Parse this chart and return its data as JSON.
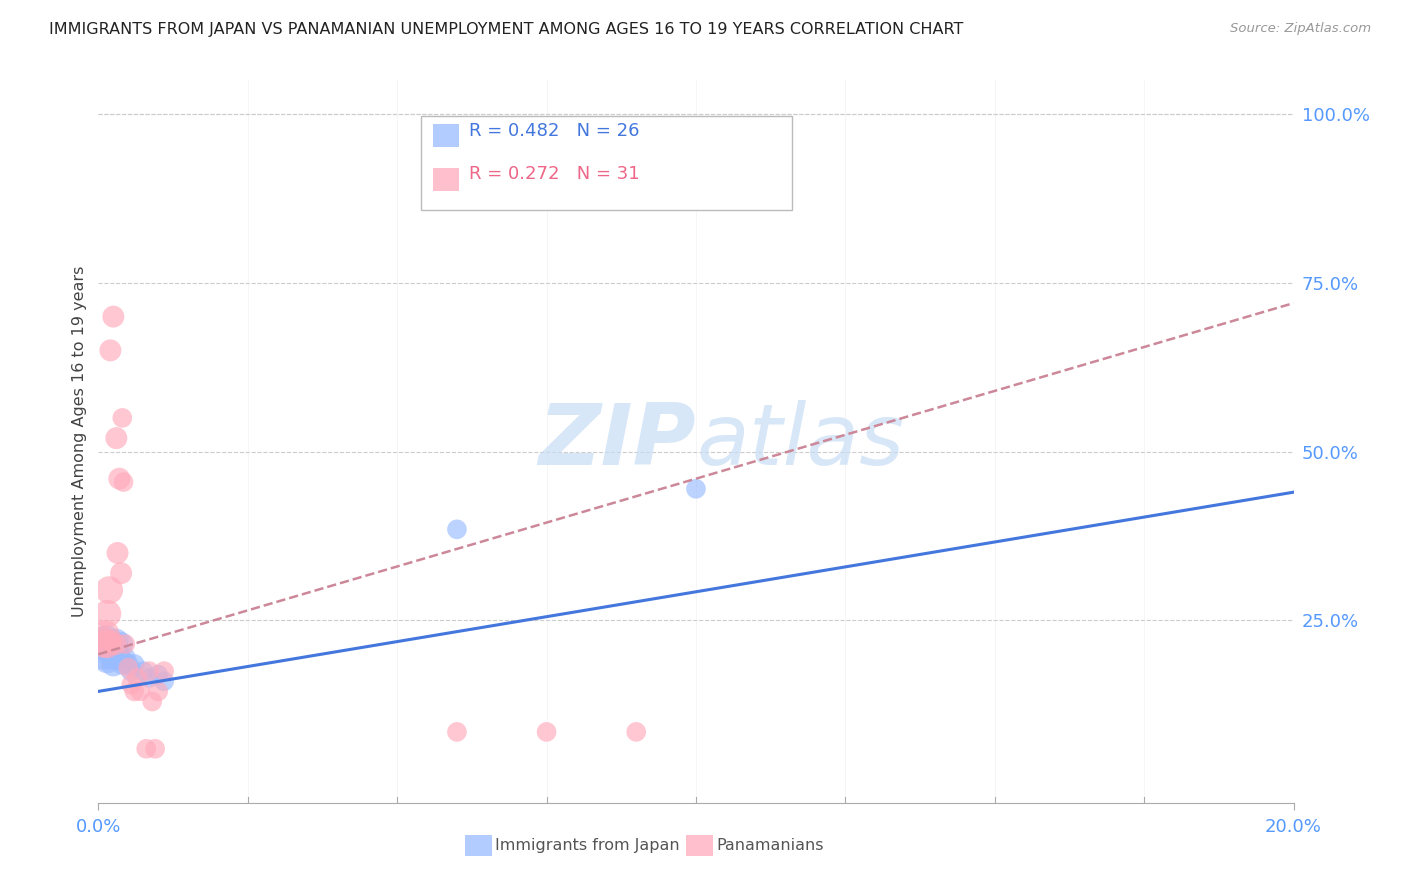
{
  "title": "IMMIGRANTS FROM JAPAN VS PANAMANIAN UNEMPLOYMENT AMONG AGES 16 TO 19 YEARS CORRELATION CHART",
  "source": "Source: ZipAtlas.com",
  "ylabel": "Unemployment Among Ages 16 to 19 years",
  "y_tick_labels": [
    "100.0%",
    "75.0%",
    "50.0%",
    "25.0%"
  ],
  "y_tick_values": [
    1.0,
    0.75,
    0.5,
    0.25
  ],
  "xlim": [
    0.0,
    0.2
  ],
  "ylim": [
    -0.02,
    1.05
  ],
  "blue_color": "#99bbff",
  "pink_color": "#ffaabb",
  "blue_line_color": "#4477dd",
  "pink_line_color": "#ee6688",
  "pink_dash_color": "#cc8899",
  "axis_label_color": "#5599ff",
  "watermark_color": "#c8ddf5",
  "japan_points": [
    [
      0.0008,
      0.215
    ],
    [
      0.001,
      0.2
    ],
    [
      0.0012,
      0.22
    ],
    [
      0.0015,
      0.215
    ],
    [
      0.0015,
      0.195
    ],
    [
      0.0018,
      0.21
    ],
    [
      0.002,
      0.2
    ],
    [
      0.0022,
      0.215
    ],
    [
      0.0025,
      0.185
    ],
    [
      0.0025,
      0.195
    ],
    [
      0.0028,
      0.195
    ],
    [
      0.003,
      0.22
    ],
    [
      0.0032,
      0.2
    ],
    [
      0.0035,
      0.195
    ],
    [
      0.0038,
      0.215
    ],
    [
      0.004,
      0.185
    ],
    [
      0.0045,
      0.195
    ],
    [
      0.005,
      0.185
    ],
    [
      0.0055,
      0.175
    ],
    [
      0.006,
      0.185
    ],
    [
      0.0075,
      0.175
    ],
    [
      0.0085,
      0.165
    ],
    [
      0.01,
      0.17
    ],
    [
      0.011,
      0.16
    ],
    [
      0.06,
      0.385
    ],
    [
      0.1,
      0.445
    ]
  ],
  "panama_points": [
    [
      0.0008,
      0.22
    ],
    [
      0.001,
      0.215
    ],
    [
      0.0012,
      0.23
    ],
    [
      0.0015,
      0.26
    ],
    [
      0.0015,
      0.215
    ],
    [
      0.0018,
      0.295
    ],
    [
      0.002,
      0.65
    ],
    [
      0.0022,
      0.22
    ],
    [
      0.0025,
      0.7
    ],
    [
      0.0028,
      0.215
    ],
    [
      0.003,
      0.52
    ],
    [
      0.0032,
      0.35
    ],
    [
      0.0035,
      0.46
    ],
    [
      0.0038,
      0.32
    ],
    [
      0.004,
      0.55
    ],
    [
      0.0042,
      0.455
    ],
    [
      0.0045,
      0.215
    ],
    [
      0.005,
      0.18
    ],
    [
      0.0055,
      0.155
    ],
    [
      0.006,
      0.145
    ],
    [
      0.0065,
      0.165
    ],
    [
      0.007,
      0.145
    ],
    [
      0.008,
      0.06
    ],
    [
      0.0085,
      0.175
    ],
    [
      0.009,
      0.13
    ],
    [
      0.0095,
      0.06
    ],
    [
      0.01,
      0.145
    ],
    [
      0.011,
      0.175
    ],
    [
      0.06,
      0.085
    ],
    [
      0.075,
      0.085
    ],
    [
      0.09,
      0.085
    ]
  ],
  "japan_trend_x": [
    0.0,
    0.2
  ],
  "japan_trend_y": [
    0.145,
    0.44
  ],
  "panama_trend_x": [
    0.0,
    0.2
  ],
  "panama_trend_y": [
    0.2,
    0.72
  ],
  "legend_entries": [
    {
      "label": "R = 0.482   N = 26",
      "color": "#4477dd"
    },
    {
      "label": "R = 0.272   N = 31",
      "color": "#ee6688"
    }
  ],
  "bottom_legend": [
    {
      "label": "Immigrants from Japan",
      "color": "#99bbff"
    },
    {
      "label": "Panamanians",
      "color": "#ffaabb"
    }
  ]
}
